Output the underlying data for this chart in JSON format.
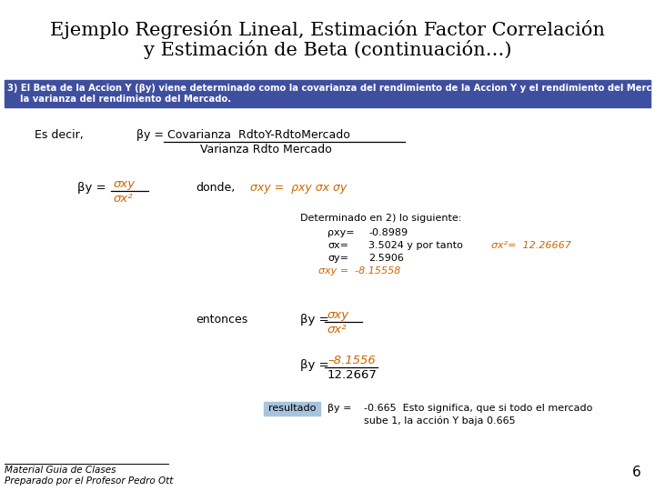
{
  "title_line1": "Ejemplo Regresión Lineal, Estimación Factor Correlación",
  "title_line2": "y Estimación de Beta (continuación…)",
  "title_fontsize": 15,
  "header_bg": "#3F4FA0",
  "header_text_color": "#FFFFFF",
  "orange_color": "#CC6600",
  "black_color": "#000000",
  "footer_text1": "Material Guia de Clases",
  "footer_text2": "Preparado por el Profesor Pedro Ott",
  "page_number": "6",
  "bg_color": "#FFFFFF"
}
